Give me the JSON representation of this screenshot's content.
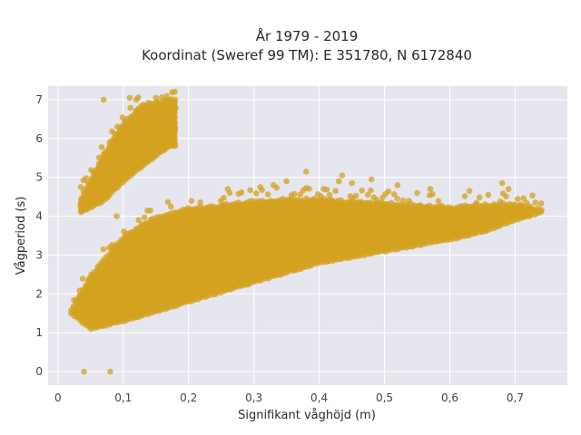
{
  "chart_data": {
    "type": "scatter",
    "title_line1": "År 1979 - 2019",
    "title_line2": "Koordinat (Sweref 99 TM): E 351780, N 6172840",
    "xlabel": "Signifikant våghöjd (m)",
    "ylabel": "Vågperiod (s)",
    "xlim": [
      -0.015,
      0.78
    ],
    "ylim": [
      -0.35,
      7.35
    ],
    "xticks": [
      0,
      0.1,
      0.2,
      0.3,
      0.4,
      0.5,
      0.6,
      0.7
    ],
    "xtick_labels": [
      "0",
      "0,1",
      "0,2",
      "0,3",
      "0,4",
      "0,5",
      "0,6",
      "0,7"
    ],
    "yticks": [
      0,
      1,
      2,
      3,
      4,
      5,
      6,
      7
    ],
    "ytick_labels": [
      "0",
      "1",
      "2",
      "3",
      "4",
      "5",
      "6",
      "7"
    ],
    "grid": true,
    "colors": {
      "marker": "#D4A21F",
      "plot_background": "#E6E6EE",
      "grid": "#FFFFFF"
    },
    "series": [
      {
        "main_band": {
          "x_range": [
            0.02,
            0.74
          ],
          "lower_edge": [
            [
              0.02,
              1.5
            ],
            [
              0.05,
              1.1
            ],
            [
              0.1,
              1.3
            ],
            [
              0.15,
              1.55
            ],
            [
              0.2,
              1.8
            ],
            [
              0.25,
              2.05
            ],
            [
              0.3,
              2.3
            ],
            [
              0.35,
              2.55
            ],
            [
              0.4,
              2.8
            ],
            [
              0.45,
              2.95
            ],
            [
              0.5,
              3.1
            ],
            [
              0.55,
              3.25
            ],
            [
              0.6,
              3.4
            ],
            [
              0.65,
              3.6
            ],
            [
              0.7,
              3.9
            ],
            [
              0.74,
              4.1
            ]
          ],
          "upper_edge": [
            [
              0.02,
              1.6
            ],
            [
              0.05,
              2.5
            ],
            [
              0.1,
              3.5
            ],
            [
              0.15,
              4.0
            ],
            [
              0.2,
              4.2
            ],
            [
              0.25,
              4.3
            ],
            [
              0.3,
              4.4
            ],
            [
              0.35,
              4.45
            ],
            [
              0.4,
              4.45
            ],
            [
              0.45,
              4.4
            ],
            [
              0.5,
              4.35
            ],
            [
              0.55,
              4.3
            ],
            [
              0.6,
              4.25
            ],
            [
              0.65,
              4.3
            ],
            [
              0.7,
              4.35
            ],
            [
              0.74,
              4.2
            ]
          ]
        },
        "upper_cluster": {
          "x_range": [
            0.035,
            0.18
          ],
          "lower_edge": [
            [
              0.035,
              4.1
            ],
            [
              0.07,
              4.4
            ],
            [
              0.1,
              4.9
            ],
            [
              0.13,
              5.3
            ],
            [
              0.17,
              5.8
            ]
          ],
          "upper_edge": [
            [
              0.035,
              4.5
            ],
            [
              0.07,
              5.6
            ],
            [
              0.1,
              6.4
            ],
            [
              0.13,
              6.9
            ],
            [
              0.17,
              7.0
            ]
          ]
        },
        "outliers": [
          [
            0.04,
            0.0
          ],
          [
            0.08,
            0.0
          ],
          [
            0.09,
            4.0
          ],
          [
            0.07,
            7.0
          ],
          [
            0.11,
            7.05
          ],
          [
            0.12,
            7.0
          ],
          [
            0.15,
            7.05
          ],
          [
            0.165,
            7.0
          ],
          [
            0.17,
            6.75
          ],
          [
            0.18,
            6.8
          ],
          [
            0.38,
            5.15
          ],
          [
            0.435,
            5.05
          ],
          [
            0.48,
            4.95
          ],
          [
            0.52,
            4.8
          ],
          [
            0.57,
            4.7
          ],
          [
            0.63,
            4.65
          ],
          [
            0.68,
            4.85
          ],
          [
            0.26,
            4.7
          ],
          [
            0.31,
            4.75
          ],
          [
            0.33,
            4.8
          ],
          [
            0.35,
            4.9
          ],
          [
            0.43,
            4.9
          ],
          [
            0.45,
            4.85
          ],
          [
            0.55,
            4.6
          ],
          [
            0.69,
            4.7
          ]
        ]
      }
    ]
  }
}
